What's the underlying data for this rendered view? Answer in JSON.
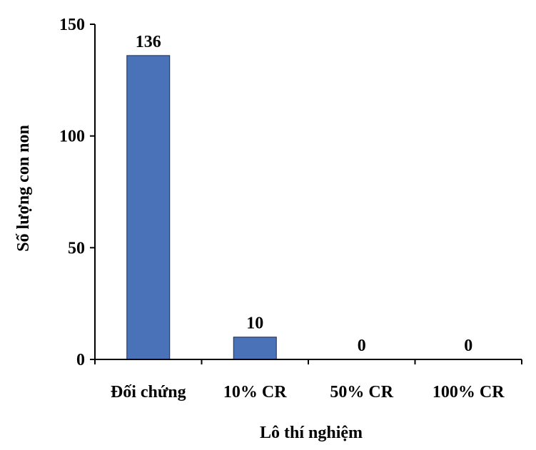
{
  "chart_data": {
    "type": "bar",
    "title": "",
    "xlabel": "Lô thí nghiệm",
    "ylabel": "Số lượng con non",
    "categories": [
      "Đối chứng",
      "10% CR",
      "50% CR",
      "100% CR"
    ],
    "values": [
      136,
      10,
      0,
      0
    ],
    "value_labels": [
      "136",
      "10",
      "0",
      "0"
    ],
    "ylim": [
      0,
      150
    ],
    "yticks": [
      0,
      50,
      100,
      150
    ],
    "ytick_labels": [
      "0",
      "50",
      "100",
      "150"
    ],
    "grid": false,
    "legend": "none",
    "colors": {
      "bar": "#4a72b8",
      "bar_border": "#1f2d4d",
      "axis": "#000000"
    }
  }
}
